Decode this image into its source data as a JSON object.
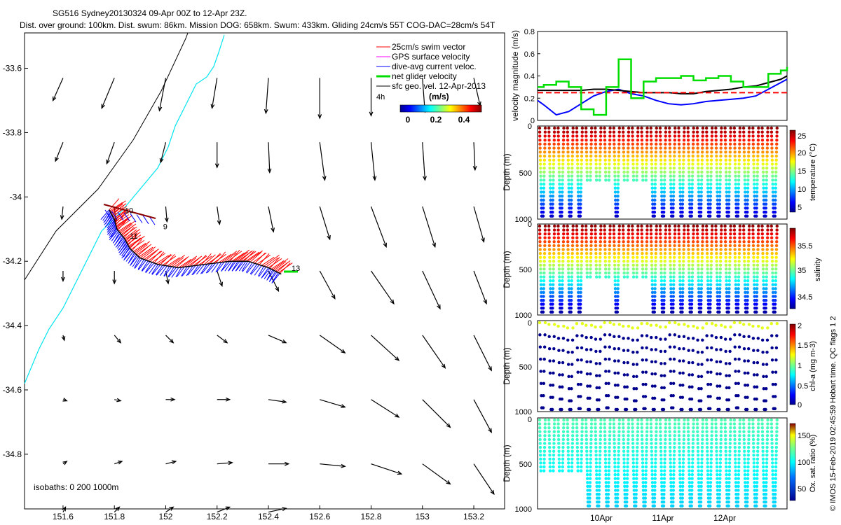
{
  "figure": {
    "title_line1": "SG516 Sydney20130324 09-Apr 00Z to 12-Apr 23Z.",
    "title_line2": "Dist. over ground: 100km. Dist. swum: 86km. Mission DOG: 658km. Swum: 433km. Gliding 24cm/s 55T COG-DAC=28cm/s 54T",
    "credit": "© IMOS 15-Feb-2019 02:45:59 Hobart time. QC flags 1  2",
    "colors": {
      "swim": "#ff0000",
      "gps": "#ff00ff",
      "dac": "#0000ff",
      "net": "#00dd00",
      "geo": "#000000",
      "coast": "#00e5ee"
    }
  },
  "chart_data": [
    {
      "type": "scatter",
      "id": "map",
      "title": "",
      "xlim": [
        151.45,
        153.32
      ],
      "ylim": [
        -34.97,
        -33.49
      ],
      "xticks": [
        "151.6",
        "151.8",
        "152",
        "152.2",
        "152.4",
        "152.6",
        "152.8",
        "153",
        "153.2"
      ],
      "yticks": [
        "-33.6",
        "-33.8",
        "-34",
        "-34.2",
        "-34.4",
        "-34.6",
        "-34.8"
      ],
      "legend": [
        "25cm/s swim vector",
        "GPS surface velocity",
        "dive-avg current veloc.",
        "net glider velocity",
        "sfc geo. vel. 12-Apr-2013"
      ],
      "legend_time": "4h",
      "colorbar": {
        "label": "(m/s)",
        "ticks": [
          "0",
          "0.2",
          "0.4"
        ]
      },
      "isobath_label": "isobaths: 0   200   1000m",
      "track": [
        [
          151.78,
          -34.04
        ],
        [
          151.8,
          -34.07
        ],
        [
          151.81,
          -34.1
        ],
        [
          151.84,
          -34.13
        ],
        [
          151.86,
          -34.16
        ],
        [
          151.9,
          -34.19
        ],
        [
          151.97,
          -34.21
        ],
        [
          152.05,
          -34.22
        ],
        [
          152.15,
          -34.21
        ],
        [
          152.25,
          -34.2
        ],
        [
          152.32,
          -34.2
        ],
        [
          152.4,
          -34.22
        ],
        [
          152.45,
          -34.24
        ]
      ],
      "track_labels": [
        {
          "text": "10",
          "x": 151.84,
          "y": -34.05
        },
        {
          "text": "9",
          "x": 151.99,
          "y": -34.1
        },
        {
          "text": "11",
          "x": 151.86,
          "y": -34.13
        },
        {
          "text": "13",
          "x": 152.49,
          "y": -34.23
        }
      ],
      "geostrophic_vectors": {
        "rows": [
          {
            "y": -33.63,
            "x": [
              151.6,
              151.8,
              152.0,
              152.2,
              152.4,
              152.6,
              152.8,
              153.0,
              153.2
            ],
            "u": [
              -0.08,
              -0.1,
              -0.05,
              -0.04,
              -0.02,
              0.0,
              0.0,
              0.02,
              0.05
            ],
            "v": [
              -0.18,
              -0.24,
              -0.26,
              -0.24,
              -0.28,
              -0.32,
              -0.3,
              -0.27,
              -0.22
            ]
          },
          {
            "y": -33.83,
            "x": [
              151.6,
              151.8,
              152.0,
              152.2,
              152.4,
              152.6,
              152.8,
              153.0,
              153.2
            ],
            "u": [
              -0.06,
              -0.06,
              -0.04,
              0.0,
              0.01,
              0.04,
              0.03,
              0.02,
              0.01
            ],
            "v": [
              -0.15,
              -0.17,
              -0.16,
              -0.2,
              -0.24,
              -0.3,
              -0.3,
              -0.3,
              -0.22
            ]
          },
          {
            "y": -34.03,
            "x": [
              151.6,
              151.8,
              152.0,
              152.2,
              152.4,
              152.6,
              152.8,
              153.0,
              153.2
            ],
            "u": [
              -0.01,
              0.01,
              0.01,
              0.02,
              0.04,
              0.08,
              0.12,
              0.1,
              0.08
            ],
            "v": [
              -0.1,
              -0.12,
              -0.12,
              -0.14,
              -0.2,
              -0.26,
              -0.32,
              -0.32,
              -0.28
            ]
          },
          {
            "y": -34.23,
            "x": [
              151.6,
              151.8,
              152.0,
              152.2,
              152.4,
              152.6,
              152.8,
              153.0,
              153.2
            ],
            "u": [
              0.0,
              0.0,
              0.02,
              0.04,
              0.08,
              0.12,
              0.18,
              0.14,
              0.1
            ],
            "v": [
              -0.08,
              -0.1,
              -0.1,
              -0.12,
              -0.16,
              -0.22,
              -0.26,
              -0.3,
              -0.26
            ]
          },
          {
            "y": -34.43,
            "x": [
              151.6,
              151.8,
              152.0,
              152.2,
              152.4,
              152.6,
              152.8,
              153.0,
              153.2
            ],
            "u": [
              0.01,
              0.05,
              0.06,
              0.08,
              0.14,
              0.2,
              0.22,
              0.18,
              0.14
            ],
            "v": [
              -0.04,
              -0.06,
              -0.06,
              -0.06,
              -0.06,
              -0.14,
              -0.2,
              -0.26,
              -0.28
            ]
          },
          {
            "y": -34.63,
            "x": [
              151.6,
              151.8,
              152.0,
              152.2,
              152.4,
              152.6,
              152.8,
              153.0,
              153.2
            ],
            "u": [
              0.03,
              0.05,
              0.07,
              0.1,
              0.14,
              0.2,
              0.22,
              0.22,
              0.14
            ],
            "v": [
              -0.01,
              -0.01,
              0.0,
              0.0,
              -0.02,
              -0.06,
              -0.14,
              -0.22,
              -0.26
            ]
          },
          {
            "y": -34.83,
            "x": [
              151.6,
              151.8,
              152.0,
              152.2,
              152.4,
              152.6,
              152.8,
              153.0,
              153.2
            ],
            "u": [
              0.03,
              0.06,
              0.08,
              0.12,
              0.16,
              0.2,
              0.24,
              0.22,
              0.16
            ],
            "v": [
              0.02,
              0.02,
              0.02,
              0.01,
              0.0,
              -0.02,
              -0.08,
              -0.16,
              -0.24
            ]
          },
          {
            "y": -34.98,
            "x": [
              151.6,
              151.8,
              152.0,
              152.2,
              152.4
            ],
            "u": [
              0.02,
              0.04,
              0.06,
              0.1,
              0.14
            ],
            "v": [
              0.04,
              0.04,
              0.04,
              0.04,
              0.03
            ]
          }
        ]
      }
    },
    {
      "type": "line",
      "id": "velocity",
      "ylabel": "velocity magnitude (m/s)",
      "ylim": [
        0,
        0.8
      ],
      "yticks": [
        "0",
        "0.2",
        "0.4",
        "0.6",
        "0.8"
      ],
      "x": [
        0,
        0.1,
        0.3,
        0.5,
        0.7,
        0.9,
        1.1,
        1.3,
        1.5,
        1.7,
        1.9,
        2.1,
        2.3,
        2.5,
        2.7,
        2.9,
        3.1,
        3.3,
        3.5,
        3.7,
        3.9,
        4.0
      ],
      "series": [
        {
          "name": "",
          "color": "#0000ff",
          "values": [
            0.18,
            0.14,
            0.05,
            0.08,
            0.15,
            0.22,
            0.26,
            0.28,
            0.24,
            0.22,
            0.18,
            0.15,
            0.14,
            0.15,
            0.17,
            0.18,
            0.19,
            0.2,
            0.22,
            0.28,
            0.34,
            0.37
          ]
        },
        {
          "name": "",
          "color": "#000000",
          "values": [
            0.27,
            0.27,
            0.27,
            0.27,
            0.27,
            0.28,
            0.28,
            0.27,
            0.26,
            0.25,
            0.25,
            0.25,
            0.24,
            0.24,
            0.26,
            0.27,
            0.28,
            0.3,
            0.31,
            0.34,
            0.37,
            0.4
          ]
        },
        {
          "name": "",
          "color": "#ff0000",
          "dashed": true,
          "values": [
            0.25,
            0.25,
            0.25,
            0.25,
            0.25,
            0.25,
            0.25,
            0.25,
            0.25,
            0.25,
            0.25,
            0.25,
            0.25,
            0.25,
            0.25,
            0.25,
            0.25,
            0.25,
            0.25,
            0.25,
            0.25,
            0.25
          ]
        },
        {
          "name": "",
          "color": "#00dd00",
          "values": [
            0.3,
            0.32,
            0.35,
            0.3,
            0.1,
            0.05,
            0.3,
            0.55,
            0.2,
            0.35,
            0.38,
            0.38,
            0.4,
            0.36,
            0.38,
            0.4,
            0.35,
            0.3,
            0.3,
            0.42,
            0.45,
            0.48
          ]
        }
      ]
    },
    {
      "type": "scatter",
      "id": "temperature",
      "ylabel": "Depth (m)",
      "yticks": [
        "0",
        "500",
        "1000"
      ],
      "colorbar_label": "temperature (°C)",
      "colorbar_ticks": [
        "5",
        "10",
        "15",
        "20",
        "25"
      ],
      "shallow_dives": [
        5,
        6,
        7,
        9,
        10,
        11
      ]
    },
    {
      "type": "scatter",
      "id": "salinity",
      "ylabel": "Depth (m)",
      "yticks": [
        "0",
        "500",
        "1000"
      ],
      "colorbar_label": "salinity",
      "colorbar_ticks": [
        "34.5",
        "35",
        "35.5"
      ],
      "shallow_dives": [
        5,
        6,
        7,
        9,
        10,
        11
      ]
    },
    {
      "type": "scatter",
      "id": "chla",
      "ylabel": "Depth (m)",
      "yticks": [
        "0",
        "500",
        "1000"
      ],
      "colorbar_label": "chl-a (mg m-3)",
      "colorbar_ticks": [
        "0",
        "0.5",
        "1",
        "1.5",
        "2"
      ]
    },
    {
      "type": "scatter",
      "id": "oxygen",
      "ylabel": "Depth (m)",
      "yticks": [
        "0",
        "500",
        "1000"
      ],
      "colorbar_label": "Ox. sat. ratio (%)",
      "colorbar_ticks": [
        "50",
        "100",
        "150"
      ],
      "x_ticks": [
        "10Apr",
        "11Apr",
        "12Apr"
      ]
    }
  ]
}
